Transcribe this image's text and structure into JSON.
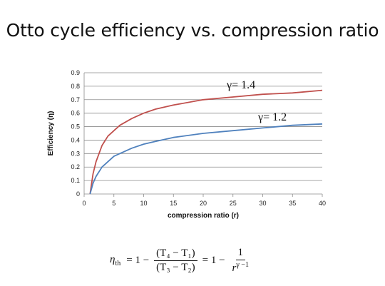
{
  "title": "Otto cycle efficiency vs. compression ratio",
  "chart_data": {
    "type": "line",
    "xlabel": "compression ratio (r)",
    "ylabel": "Efficiency  (η)",
    "xlim": [
      0,
      40
    ],
    "ylim": [
      0,
      0.9
    ],
    "x_ticks": [
      "0",
      "5",
      "10",
      "15",
      "20",
      "25",
      "30",
      "35",
      "40"
    ],
    "y_ticks": [
      "0",
      "0.1",
      "0.2",
      "0.3",
      "0.4",
      "0.5",
      "0.6",
      "0.7",
      "0.8",
      "0.9"
    ],
    "grid": "horizontal",
    "series": [
      {
        "name": "γ= 1.4",
        "color": "#c0504d",
        "x": [
          1,
          1.5,
          2,
          3,
          4,
          5,
          6,
          8,
          10,
          12,
          15,
          20,
          25,
          30,
          35,
          40
        ],
        "y": [
          0,
          0.15,
          0.24,
          0.36,
          0.43,
          0.47,
          0.51,
          0.56,
          0.6,
          0.63,
          0.66,
          0.7,
          0.72,
          0.74,
          0.75,
          0.77
        ]
      },
      {
        "name": "γ= 1.2",
        "color": "#4f81bd",
        "x": [
          1,
          1.5,
          2,
          3,
          4,
          5,
          6,
          8,
          10,
          12,
          15,
          20,
          25,
          30,
          35,
          40
        ],
        "y": [
          0,
          0.08,
          0.13,
          0.2,
          0.24,
          0.28,
          0.3,
          0.34,
          0.37,
          0.39,
          0.42,
          0.45,
          0.47,
          0.49,
          0.51,
          0.52
        ]
      }
    ]
  },
  "formula": {
    "eta": "η",
    "eta_sub": "th",
    "eq1": "= 1 −",
    "num1": "(T₄ − T₁)",
    "den1": "(T₃ − T₂)",
    "eq2": "= 1 −",
    "num2": "1",
    "den2_base": "r",
    "den2_exp": "γ −1"
  }
}
